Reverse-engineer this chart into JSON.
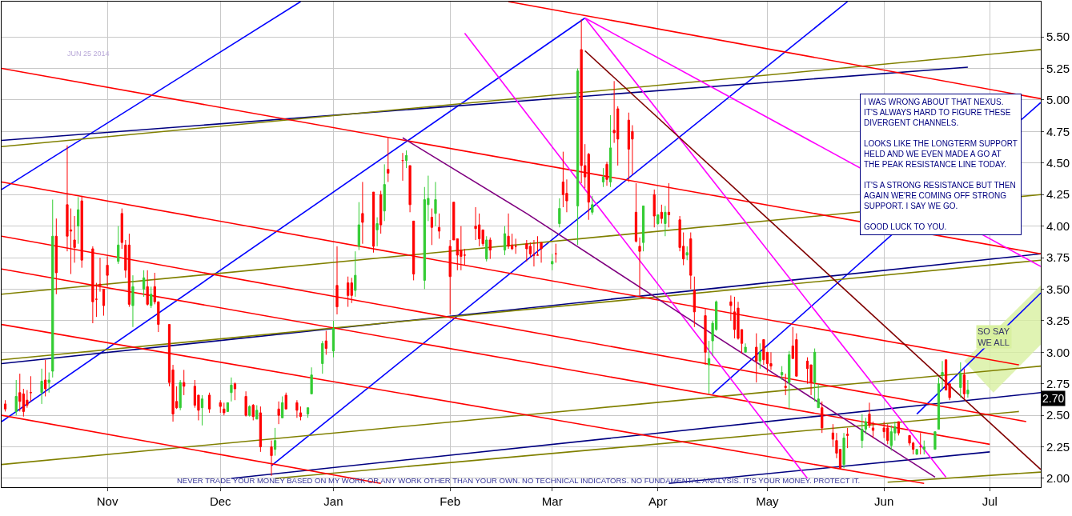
{
  "chart_data": {
    "type": "candlestick",
    "x": [
      "2013-10-04",
      "2013-10-07",
      "2013-10-08",
      "2013-10-09",
      "2013-10-10",
      "2013-10-11",
      "2013-10-14",
      "2013-10-15",
      "2013-10-16",
      "2013-10-17",
      "2013-10-18",
      "2013-10-21",
      "2013-10-22",
      "2013-10-23",
      "2013-10-24",
      "2013-10-25",
      "2013-10-28",
      "2013-10-29",
      "2013-10-30",
      "2013-10-31",
      "2013-11-01",
      "2013-11-04",
      "2013-11-05",
      "2013-11-06",
      "2013-11-07",
      "2013-11-08",
      "2013-11-11",
      "2013-11-12",
      "2013-11-13",
      "2013-11-14",
      "2013-11-15",
      "2013-11-18",
      "2013-11-19",
      "2013-11-20",
      "2013-11-21",
      "2013-11-22",
      "2013-11-25",
      "2013-11-26",
      "2013-11-27",
      "2013-11-29",
      "2013-12-02",
      "2013-12-03",
      "2013-12-04",
      "2013-12-05",
      "2013-12-06",
      "2013-12-09",
      "2013-12-10",
      "2013-12-11",
      "2013-12-12",
      "2013-12-13",
      "2013-12-16",
      "2013-12-17",
      "2013-12-18",
      "2013-12-19",
      "2013-12-20",
      "2013-12-23",
      "2013-12-24",
      "2013-12-26",
      "2013-12-27",
      "2013-12-30",
      "2013-12-31",
      "2014-01-02",
      "2014-01-03",
      "2014-01-06",
      "2014-01-07",
      "2014-01-08",
      "2014-01-09",
      "2014-01-10",
      "2014-01-13",
      "2014-01-14",
      "2014-01-15",
      "2014-01-16",
      "2014-01-17",
      "2014-01-21",
      "2014-01-22",
      "2014-01-23",
      "2014-01-24",
      "2014-01-27",
      "2014-01-28",
      "2014-01-29",
      "2014-01-30",
      "2014-01-31",
      "2014-02-03",
      "2014-02-04",
      "2014-02-05",
      "2014-02-06",
      "2014-02-07",
      "2014-02-10",
      "2014-02-11",
      "2014-02-12",
      "2014-02-13",
      "2014-02-14",
      "2014-02-18",
      "2014-02-19",
      "2014-02-20",
      "2014-02-21",
      "2014-02-24",
      "2014-02-25",
      "2014-02-26",
      "2014-02-27",
      "2014-02-28",
      "2014-03-03",
      "2014-03-04",
      "2014-03-05",
      "2014-03-06",
      "2014-03-07",
      "2014-03-10",
      "2014-03-11",
      "2014-03-12",
      "2014-03-13",
      "2014-03-14",
      "2014-03-17",
      "2014-03-18",
      "2014-03-19",
      "2014-03-20",
      "2014-03-21",
      "2014-03-24",
      "2014-03-25",
      "2014-03-26",
      "2014-03-27",
      "2014-03-28",
      "2014-03-31",
      "2014-04-01",
      "2014-04-02",
      "2014-04-03",
      "2014-04-04",
      "2014-04-07",
      "2014-04-08",
      "2014-04-09",
      "2014-04-10",
      "2014-04-11",
      "2014-04-14",
      "2014-04-15",
      "2014-04-16",
      "2014-04-17",
      "2014-04-21",
      "2014-04-22",
      "2014-04-23",
      "2014-04-24",
      "2014-04-25",
      "2014-04-28",
      "2014-04-29",
      "2014-04-30",
      "2014-05-01",
      "2014-05-02",
      "2014-05-05",
      "2014-05-06",
      "2014-05-07",
      "2014-05-08",
      "2014-05-09",
      "2014-05-12",
      "2014-05-13",
      "2014-05-14",
      "2014-05-15",
      "2014-05-16",
      "2014-05-19",
      "2014-05-20",
      "2014-05-21",
      "2014-05-22",
      "2014-05-23",
      "2014-05-27",
      "2014-05-28",
      "2014-05-29",
      "2014-05-30",
      "2014-06-02",
      "2014-06-03",
      "2014-06-04",
      "2014-06-05",
      "2014-06-06",
      "2014-06-09",
      "2014-06-10",
      "2014-06-11",
      "2014-06-12",
      "2014-06-13",
      "2014-06-16",
      "2014-06-17",
      "2014-06-18",
      "2014-06-19",
      "2014-06-20",
      "2014-06-23",
      "2014-06-24",
      "2014-06-25"
    ],
    "ohlc": [
      [
        2.59,
        2.62,
        2.53,
        2.55
      ],
      [
        2.53,
        2.78,
        2.5,
        2.65
      ],
      [
        2.68,
        2.83,
        2.53,
        2.61
      ],
      [
        2.67,
        2.71,
        2.49,
        2.53
      ],
      [
        2.62,
        2.7,
        2.56,
        2.58
      ],
      [
        2.68,
        2.81,
        2.61,
        2.68
      ],
      [
        2.68,
        2.87,
        2.59,
        2.77
      ],
      [
        2.78,
        2.94,
        2.65,
        2.71
      ],
      [
        2.76,
        2.84,
        2.68,
        2.78
      ],
      [
        2.85,
        4.21,
        2.8,
        3.92
      ],
      [
        3.92,
        4.06,
        3.46,
        3.63
      ],
      [
        4.17,
        4.64,
        3.8,
        3.92
      ],
      [
        3.97,
        4.14,
        3.62,
        3.96
      ],
      [
        3.89,
        4.08,
        3.71,
        3.83
      ],
      [
        4.0,
        4.23,
        3.86,
        4.13
      ],
      [
        4.2,
        4.24,
        3.67,
        3.73
      ],
      [
        3.82,
        3.84,
        3.23,
        3.4
      ],
      [
        3.42,
        3.55,
        3.28,
        3.42
      ],
      [
        3.54,
        3.75,
        3.48,
        3.53
      ],
      [
        3.5,
        3.5,
        3.29,
        3.37
      ],
      [
        3.69,
        3.76,
        3.52,
        3.61
      ],
      [
        3.72,
        4.0,
        3.7,
        3.85
      ],
      [
        4.1,
        4.14,
        3.82,
        3.87
      ],
      [
        3.85,
        3.89,
        3.59,
        3.65
      ],
      [
        3.85,
        3.94,
        3.36,
        3.38
      ],
      [
        3.37,
        3.61,
        3.2,
        3.52
      ],
      [
        3.5,
        3.65,
        3.44,
        3.59
      ],
      [
        3.52,
        3.65,
        3.37,
        3.38
      ],
      [
        3.37,
        3.52,
        3.35,
        3.46
      ],
      [
        3.52,
        3.63,
        3.38,
        3.4
      ],
      [
        3.4,
        3.4,
        3.16,
        3.22
      ],
      [
        3.22,
        3.22,
        2.73,
        2.76
      ],
      [
        2.86,
        2.9,
        2.45,
        2.51
      ],
      [
        2.61,
        2.73,
        2.55,
        2.56
      ],
      [
        2.56,
        2.78,
        2.54,
        2.76
      ],
      [
        2.76,
        2.86,
        2.66,
        2.73
      ],
      [
        2.73,
        2.78,
        2.56,
        2.58
      ],
      [
        2.66,
        2.66,
        2.46,
        2.54
      ],
      [
        2.56,
        2.66,
        2.42,
        2.63
      ],
      [
        2.66,
        2.68,
        2.52,
        2.55
      ],
      [
        2.6,
        2.62,
        2.52,
        2.57
      ],
      [
        2.55,
        2.6,
        2.5,
        2.52
      ],
      [
        2.53,
        2.6,
        2.53,
        2.6
      ],
      [
        2.68,
        2.8,
        2.61,
        2.74
      ],
      [
        2.75,
        2.76,
        2.62,
        2.71
      ],
      [
        2.65,
        2.69,
        2.49,
        2.5
      ],
      [
        2.5,
        2.58,
        2.49,
        2.57
      ],
      [
        2.58,
        2.59,
        2.46,
        2.49
      ],
      [
        2.47,
        2.58,
        2.47,
        2.54
      ],
      [
        2.52,
        2.57,
        2.21,
        2.25
      ],
      [
        2.25,
        2.3,
        2.02,
        2.18
      ],
      [
        2.23,
        2.4,
        2.18,
        2.3
      ],
      [
        2.55,
        2.61,
        2.43,
        2.5
      ],
      [
        2.48,
        2.65,
        2.48,
        2.6
      ],
      [
        2.66,
        2.68,
        2.55,
        2.55
      ],
      [
        2.6,
        2.62,
        2.48,
        2.54
      ],
      [
        2.52,
        2.57,
        2.46,
        2.49
      ],
      [
        2.51,
        2.56,
        2.48,
        2.56
      ],
      [
        2.67,
        2.88,
        2.67,
        2.82
      ],
      [
        2.91,
        3.09,
        2.83,
        3.07
      ],
      [
        3.09,
        3.17,
        2.98,
        3.03
      ],
      [
        3.01,
        3.25,
        2.96,
        3.19
      ],
      [
        3.53,
        3.84,
        3.3,
        3.36
      ],
      [
        3.55,
        3.6,
        3.36,
        3.45
      ],
      [
        3.55,
        3.59,
        3.39,
        3.45
      ],
      [
        3.49,
        3.8,
        3.44,
        3.61
      ],
      [
        3.84,
        4.19,
        3.81,
        4.01
      ],
      [
        4.1,
        4.35,
        3.86,
        4.03
      ],
      [
        4.27,
        4.27,
        3.79,
        3.84
      ],
      [
        3.97,
        4.07,
        3.84,
        4.02
      ],
      [
        4.25,
        4.28,
        3.94,
        4.01
      ],
      [
        4.12,
        4.49,
        4.04,
        4.33
      ],
      [
        4.45,
        4.7,
        4.35,
        4.42
      ],
      [
        4.52,
        4.58,
        4.36,
        4.52
      ],
      [
        4.52,
        4.6,
        4.46,
        4.56
      ],
      [
        4.48,
        4.48,
        4.11,
        4.17
      ],
      [
        4.04,
        4.04,
        3.57,
        3.62
      ],
      [
        3.57,
        4.31,
        3.5,
        4.21
      ],
      [
        4.17,
        4.4,
        4.04,
        4.22
      ],
      [
        4.07,
        4.14,
        3.85,
        3.99
      ],
      [
        4.1,
        4.35,
        4.0,
        4.21
      ],
      [
        3.99,
        4.1,
        3.9,
        3.96
      ],
      [
        3.84,
        3.89,
        3.3,
        3.6
      ],
      [
        4.19,
        4.19,
        3.89,
        3.89
      ],
      [
        3.9,
        3.9,
        3.65,
        3.77
      ],
      [
        3.81,
        4.0,
        3.65,
        3.76
      ],
      [
        3.77,
        3.82,
        3.69,
        3.77
      ],
      [
        4.0,
        4.15,
        3.89,
        3.98
      ],
      [
        4.01,
        4.1,
        3.84,
        3.9
      ],
      [
        3.97,
        3.97,
        3.84,
        3.86
      ],
      [
        3.74,
        3.92,
        3.72,
        3.89
      ],
      [
        3.89,
        3.91,
        3.74,
        3.81
      ],
      [
        3.81,
        4.0,
        3.77,
        3.94
      ],
      [
        3.92,
        4.1,
        3.82,
        3.84
      ],
      [
        3.85,
        3.94,
        3.81,
        3.82
      ],
      [
        3.84,
        3.9,
        3.78,
        3.84
      ],
      [
        3.86,
        3.89,
        3.72,
        3.82
      ],
      [
        3.84,
        3.87,
        3.75,
        3.78
      ],
      [
        3.77,
        3.89,
        3.68,
        3.77
      ],
      [
        3.77,
        3.92,
        3.77,
        3.77
      ],
      [
        3.87,
        3.87,
        3.71,
        3.82
      ],
      [
        3.7,
        3.78,
        3.65,
        3.72
      ],
      [
        3.78,
        3.86,
        3.71,
        3.78
      ],
      [
        4.02,
        4.22,
        3.99,
        4.14
      ],
      [
        4.35,
        4.59,
        4.15,
        4.25
      ],
      [
        4.26,
        4.37,
        4.11,
        4.2
      ],
      [
        4.16,
        5.25,
        3.85,
        5.23
      ],
      [
        5.4,
        5.64,
        4.34,
        4.48
      ],
      [
        4.48,
        4.65,
        4.3,
        4.39
      ],
      [
        4.57,
        4.58,
        4.05,
        4.19
      ],
      [
        4.11,
        4.24,
        4.09,
        4.17
      ],
      [
        4.35,
        4.46,
        4.31,
        4.39
      ],
      [
        4.49,
        4.51,
        4.32,
        4.37
      ],
      [
        4.35,
        4.88,
        4.31,
        4.62
      ],
      [
        4.76,
        5.15,
        4.66,
        4.74
      ],
      [
        4.93,
        4.95,
        4.48,
        4.69
      ],
      [
        4.84,
        4.9,
        4.35,
        4.61
      ],
      [
        4.75,
        4.8,
        4.41,
        4.69
      ],
      [
        4.11,
        4.34,
        3.87,
        3.88
      ],
      [
        3.84,
        3.91,
        3.45,
        3.8
      ],
      [
        3.87,
        4.16,
        3.8,
        4.16
      ],
      [
        4.25,
        4.29,
        3.99,
        4.08
      ],
      [
        4.02,
        4.09,
        4.01,
        4.09
      ],
      [
        4.11,
        4.17,
        4.02,
        4.06
      ],
      [
        4.02,
        4.16,
        3.92,
        4.11
      ],
      [
        4.11,
        4.34,
        3.99,
        4.09
      ],
      [
        4.05,
        4.08,
        3.8,
        3.83
      ],
      [
        3.84,
        3.95,
        3.69,
        3.74
      ],
      [
        3.77,
        3.84,
        3.73,
        3.79
      ],
      [
        3.9,
        3.95,
        3.5,
        3.61
      ],
      [
        3.49,
        3.6,
        3.2,
        3.32
      ],
      [
        3.29,
        3.35,
        2.9,
        3.0
      ],
      [
        2.9,
        3.09,
        2.67,
        2.95
      ],
      [
        3.09,
        3.25,
        2.97,
        3.23
      ],
      [
        3.18,
        3.41,
        3.17,
        3.4
      ],
      [
        3.4,
        3.45,
        3.25,
        3.37
      ],
      [
        3.32,
        3.44,
        3.11,
        3.18
      ],
      [
        3.35,
        3.4,
        3.1,
        3.11
      ],
      [
        3.18,
        3.18,
        2.99,
        3.07
      ],
      [
        3.0,
        3.07,
        3.0,
        3.04
      ],
      [
        3.04,
        3.15,
        2.76,
        2.93
      ],
      [
        2.93,
        3.07,
        2.87,
        3.0
      ],
      [
        3.1,
        3.1,
        2.9,
        2.94
      ],
      [
        3.0,
        3.0,
        2.84,
        2.91
      ],
      [
        2.91,
        3.0,
        2.86,
        2.89
      ],
      [
        2.82,
        2.89,
        2.78,
        2.84
      ],
      [
        2.73,
        2.83,
        2.66,
        2.72
      ],
      [
        2.76,
        3.01,
        2.55,
        2.98
      ],
      [
        3.05,
        3.2,
        2.95,
        2.95
      ],
      [
        3.1,
        3.15,
        2.81,
        2.81
      ],
      [
        2.93,
        2.96,
        2.75,
        2.87
      ],
      [
        2.9,
        2.9,
        2.66,
        2.76
      ],
      [
        2.76,
        3.03,
        2.61,
        3.0
      ],
      [
        2.56,
        2.75,
        2.56,
        2.63
      ],
      [
        2.56,
        2.61,
        2.36,
        2.4
      ],
      [
        2.36,
        2.43,
        2.25,
        2.31
      ],
      [
        2.3,
        2.36,
        2.16,
        2.2
      ],
      [
        2.23,
        2.23,
        2.07,
        2.08
      ],
      [
        2.11,
        2.36,
        2.08,
        2.32
      ],
      [
        2.35,
        2.4,
        2.24,
        2.34
      ],
      [
        2.3,
        2.51,
        2.24,
        2.39
      ],
      [
        2.39,
        2.48,
        2.35,
        2.45
      ],
      [
        2.51,
        2.6,
        2.4,
        2.42
      ],
      [
        2.4,
        2.45,
        2.32,
        2.38
      ],
      [
        2.4,
        2.45,
        2.32,
        2.37
      ],
      [
        2.4,
        2.43,
        2.27,
        2.3
      ],
      [
        2.26,
        2.42,
        2.22,
        2.37
      ],
      [
        2.36,
        2.45,
        2.3,
        2.41
      ],
      [
        2.45,
        2.45,
        2.34,
        2.36
      ],
      [
        2.34,
        2.34,
        2.26,
        2.28
      ],
      [
        2.28,
        2.29,
        2.19,
        2.23
      ],
      [
        2.19,
        2.23,
        2.19,
        2.23
      ],
      [
        2.25,
        2.36,
        2.19,
        2.25
      ],
      [
        2.23,
        2.3,
        2.19,
        2.25
      ],
      [
        2.23,
        2.37,
        2.23,
        2.37
      ],
      [
        2.39,
        2.8,
        2.39,
        2.75
      ],
      [
        2.82,
        2.93,
        2.7,
        2.84
      ],
      [
        2.94,
        2.94,
        2.7,
        2.7
      ],
      [
        2.75,
        2.75,
        2.62,
        2.64
      ],
      [
        2.72,
        2.92,
        2.64,
        2.83
      ],
      [
        2.82,
        2.87,
        2.63,
        2.67
      ],
      [
        2.67,
        2.78,
        2.64,
        2.7
      ]
    ],
    "colors": [
      "#ff0000",
      "#33cc33",
      "#ff0000",
      "#ff0000",
      "#ff0000",
      "#ff0000",
      "#33cc33",
      "#ff0000",
      "#33cc33",
      "#33cc33",
      "#ff0000",
      "#ff0000",
      "#ff0000",
      "#ff0000",
      "#33cc33",
      "#ff0000",
      "#ff0000",
      "#ff0000",
      "#ff0000",
      "#ff0000",
      "#ff0000",
      "#33cc33",
      "#ff0000",
      "#ff0000",
      "#ff0000",
      "#33cc33",
      "#33cc33",
      "#ff0000",
      "#33cc33",
      "#ff0000",
      "#ff0000",
      "#ff0000",
      "#ff0000",
      "#ff0000",
      "#33cc33",
      "#ff0000",
      "#ff0000",
      "#ff0000",
      "#33cc33",
      "#ff0000",
      "#ff0000",
      "#ff0000",
      "#33cc33",
      "#33cc33",
      "#ff0000",
      "#ff0000",
      "#33cc33",
      "#ff0000",
      "#33cc33",
      "#ff0000",
      "#ff0000",
      "#33cc33",
      "#ff0000",
      "#33cc33",
      "#ff0000",
      "#ff0000",
      "#ff0000",
      "#33cc33",
      "#33cc33",
      "#33cc33",
      "#ff0000",
      "#33cc33",
      "#ff0000",
      "#ff0000",
      "#ff0000",
      "#33cc33",
      "#33cc33",
      "#ff0000",
      "#ff0000",
      "#33cc33",
      "#ff0000",
      "#33cc33",
      "#ff0000",
      "#ff0000",
      "#33cc33",
      "#ff0000",
      "#ff0000",
      "#33cc33",
      "#33cc33",
      "#ff0000",
      "#33cc33",
      "#ff0000",
      "#ff0000",
      "#ff0000",
      "#ff0000",
      "#ff0000",
      "#ff0000",
      "#ff0000",
      "#ff0000",
      "#ff0000",
      "#33cc33",
      "#ff0000",
      "#33cc33",
      "#ff0000",
      "#ff0000",
      "#ff0000",
      "#ff0000",
      "#ff0000",
      "#ff0000",
      "#ff0000",
      "#ff0000",
      "#33cc33",
      "#ff0000",
      "#33cc33",
      "#ff0000",
      "#ff0000",
      "#33cc33",
      "#ff0000",
      "#ff0000",
      "#ff0000",
      "#33cc33",
      "#33cc33",
      "#ff0000",
      "#33cc33",
      "#ff0000",
      "#ff0000",
      "#ff0000",
      "#ff0000",
      "#ff0000",
      "#ff0000",
      "#33cc33",
      "#ff0000",
      "#33cc33",
      "#ff0000",
      "#33cc33",
      "#ff0000",
      "#ff0000",
      "#ff0000",
      "#33cc33",
      "#ff0000",
      "#ff0000",
      "#ff0000",
      "#33cc33",
      "#33cc33",
      "#33cc33",
      "#ff0000",
      "#ff0000",
      "#ff0000",
      "#ff0000",
      "#33cc33",
      "#ff0000",
      "#33cc33",
      "#ff0000",
      "#ff0000",
      "#ff0000",
      "#33cc33",
      "#ff0000",
      "#33cc33",
      "#ff0000",
      "#ff0000",
      "#ff0000",
      "#ff0000",
      "#33cc33",
      "#33cc33",
      "#ff0000",
      "#ff0000",
      "#ff0000",
      "#ff0000",
      "#33cc33",
      "#ff0000",
      "#33cc33",
      "#33cc33",
      "#ff0000",
      "#ff0000",
      "#ff0000",
      "#ff0000",
      "#33cc33",
      "#33cc33",
      "#ff0000",
      "#ff0000",
      "#ff0000",
      "#33cc33",
      "#ff0000",
      "#33cc33",
      "#33cc33",
      "#33cc33",
      "#33cc33",
      "#ff0000",
      "#ff0000",
      "#33cc33",
      "#ff0000",
      "#33cc33"
    ],
    "series": [
      {
        "type": "area",
        "color": "#d8f0a0",
        "x": [
          "2014-06-24",
          "2014-07-15",
          "2014-07-15",
          "2014-07-02"
        ],
        "values": [
          2.93,
          3.53,
          3.06,
          2.68
        ]
      },
      {
        "type": "line",
        "color": "#0000ff",
        "x": [
          "2013-10-03",
          "2013-12-24"
        ],
        "values": [
          4.29,
          5.78
        ]
      },
      {
        "type": "line",
        "color": "#0000ff",
        "x": [
          "2013-10-03",
          "2014-03-12"
        ],
        "values": [
          2.45,
          5.65
        ]
      },
      {
        "type": "line",
        "color": "#0000ff",
        "x": [
          "2013-12-16",
          "2014-05-23"
        ],
        "values": [
          2.1,
          5.78
        ]
      },
      {
        "type": "line",
        "color": "#0000ff",
        "x": [
          "2014-04-16",
          "2014-07-15"
        ],
        "values": [
          2.67,
          4.98
        ]
      },
      {
        "type": "line",
        "color": "#0000ff",
        "x": [
          "2014-06-11",
          "2014-07-15"
        ],
        "values": [
          2.51,
          3.47
        ]
      },
      {
        "type": "line",
        "color": "#000080",
        "x": [
          "2013-10-03",
          "2014-07-15"
        ],
        "values": [
          2.91,
          3.78
        ]
      },
      {
        "type": "line",
        "color": "#000080",
        "x": [
          "2013-10-03",
          "2014-06-25"
        ],
        "values": [
          4.68,
          5.26
        ]
      },
      {
        "type": "line",
        "color": "#000080",
        "x": [
          "2013-12-05",
          "2014-07-15"
        ],
        "values": [
          2.0,
          2.68
        ]
      },
      {
        "type": "line",
        "color": "#000080",
        "x": [
          "2014-04-04",
          "2014-07-01"
        ],
        "values": [
          1.96,
          2.21
        ]
      },
      {
        "type": "line",
        "color": "#808000",
        "x": [
          "2013-10-03",
          "2014-07-15"
        ],
        "values": [
          4.63,
          5.4
        ]
      },
      {
        "type": "line",
        "color": "#808000",
        "x": [
          "2013-10-03",
          "2014-07-15"
        ],
        "values": [
          3.46,
          4.25
        ]
      },
      {
        "type": "line",
        "color": "#808000",
        "x": [
          "2013-10-03",
          "2014-07-15"
        ],
        "values": [
          2.94,
          3.73
        ]
      },
      {
        "type": "line",
        "color": "#808000",
        "x": [
          "2013-10-03",
          "2014-07-15"
        ],
        "values": [
          2.11,
          2.89
        ]
      },
      {
        "type": "line",
        "color": "#808000",
        "x": [
          "2013-12-17",
          "2014-07-09"
        ],
        "values": [
          2.0,
          2.53
        ]
      },
      {
        "type": "line",
        "color": "#808000",
        "x": [
          "2014-06-03",
          "2014-07-15"
        ],
        "values": [
          1.97,
          2.05
        ]
      },
      {
        "type": "line",
        "color": "#ff0000",
        "x": [
          "2013-10-03",
          "2014-07-11"
        ],
        "values": [
          3.92,
          2.45
        ]
      },
      {
        "type": "line",
        "color": "#ff0000",
        "x": [
          "2013-10-03",
          "2014-07-15"
        ],
        "values": [
          5.25,
          3.78
        ]
      },
      {
        "type": "line",
        "color": "#ff0000",
        "x": [
          "2013-10-03",
          "2014-07-09"
        ],
        "values": [
          4.35,
          2.9
        ]
      },
      {
        "type": "line",
        "color": "#ff0000",
        "x": [
          "2013-10-03",
          "2014-07-01"
        ],
        "values": [
          3.66,
          2.27
        ]
      },
      {
        "type": "line",
        "color": "#ff0000",
        "x": [
          "2013-10-03",
          "2014-06-13"
        ],
        "values": [
          3.22,
          1.96
        ]
      },
      {
        "type": "line",
        "color": "#ff0000",
        "x": [
          "2013-10-03",
          "2014-01-15"
        ],
        "values": [
          2.5,
          1.96
        ]
      },
      {
        "type": "line",
        "color": "#ff0000",
        "x": [
          "2014-02-19",
          "2014-07-15"
        ],
        "values": [
          5.78,
          5.01
        ]
      },
      {
        "type": "line",
        "color": "#ff00ff",
        "x": [
          "2014-03-12",
          "2014-07-15"
        ],
        "values": [
          5.65,
          3.68
        ]
      },
      {
        "type": "line",
        "color": "#ff00ff",
        "x": [
          "2014-02-07",
          "2014-05-12"
        ],
        "values": [
          5.53,
          2.0
        ]
      },
      {
        "type": "line",
        "color": "#ff00ff",
        "x": [
          "2014-03-12",
          "2014-06-19"
        ],
        "values": [
          5.65,
          2.01
        ]
      },
      {
        "type": "line",
        "color": "#800000",
        "x": [
          "2014-03-12",
          "2014-07-15"
        ],
        "values": [
          5.39,
          2.07
        ]
      },
      {
        "type": "line",
        "color": "#800080",
        "x": [
          "2014-01-21",
          "2014-02-24",
          "2014-04-07",
          "2014-06-16"
        ],
        "values": [
          4.7,
          4.1,
          3.31,
          2.01
        ]
      }
    ],
    "xlim": [
      "2013-10-03",
      "2014-07-15"
    ],
    "xticks": [
      {
        "value": "2013-11-01",
        "label": "Nov"
      },
      {
        "value": "2013-12-02",
        "label": "Dec"
      },
      {
        "value": "2014-01-02",
        "label": "Jan"
      },
      {
        "value": "2014-02-03",
        "label": "Feb"
      },
      {
        "value": "2014-03-03",
        "label": "Mar"
      },
      {
        "value": "2014-04-01",
        "label": "Apr"
      },
      {
        "value": "2014-05-01",
        "label": "May"
      },
      {
        "value": "2014-06-02",
        "label": "Jun"
      },
      {
        "value": "2014-07-01",
        "label": "Jul"
      }
    ],
    "ylim": [
      1.93,
      5.78
    ],
    "yticks": [
      {
        "value": 2,
        "label": "2.00"
      },
      {
        "value": 2.25,
        "label": "2.25"
      },
      {
        "value": 2.5,
        "label": "2.50"
      },
      {
        "value": 2.75,
        "label": "2.75"
      },
      {
        "value": 3,
        "label": "3.00"
      },
      {
        "value": 3.25,
        "label": "3.25"
      },
      {
        "value": 3.5,
        "label": "3.50"
      },
      {
        "value": 3.75,
        "label": "3.75"
      },
      {
        "value": 4,
        "label": "4.00"
      },
      {
        "value": 4.25,
        "label": "4.25"
      },
      {
        "value": 4.5,
        "label": "4.50"
      },
      {
        "value": 4.75,
        "label": "4.75"
      },
      {
        "value": 5,
        "label": "5.00"
      },
      {
        "value": 5.25,
        "label": "5.25"
      },
      {
        "value": 5.5,
        "label": "5.50"
      }
    ],
    "grid": true,
    "annotations": [
      "JUN 25 2014",
      "I WAS WRONG ABOUT THAT NEXUS.\nIT'S ALWAYS HARD TO FIGURE THESE\nDIVERGENT CHANNELS.\n\nLOOKS LIKE THE LONGTERM SUPPORT\nHELD AND WE EVEN MADE A GO AT\nTHE PEAK RESISTANCE LINE TODAY.\n\nIT'S A STRONG RESISTANCE BUT THEN\nAGAIN WE'RE COMING OFF STRONG\nSUPPORT. I SAY WE GO.\n\nGOOD LUCK TO YOU.",
      "NEVER TRADE YOUR MONEY BASED ON MY WORK OR ANY WORK OTHER THAN YOUR OWN. NO TECHNICAL INDICATORS. NO FUNDAMENTAL ANALYSIS. IT'S YOUR MONEY. PROTECT IT.",
      "SO SAY\nWE ALL",
      "2.70"
    ]
  }
}
